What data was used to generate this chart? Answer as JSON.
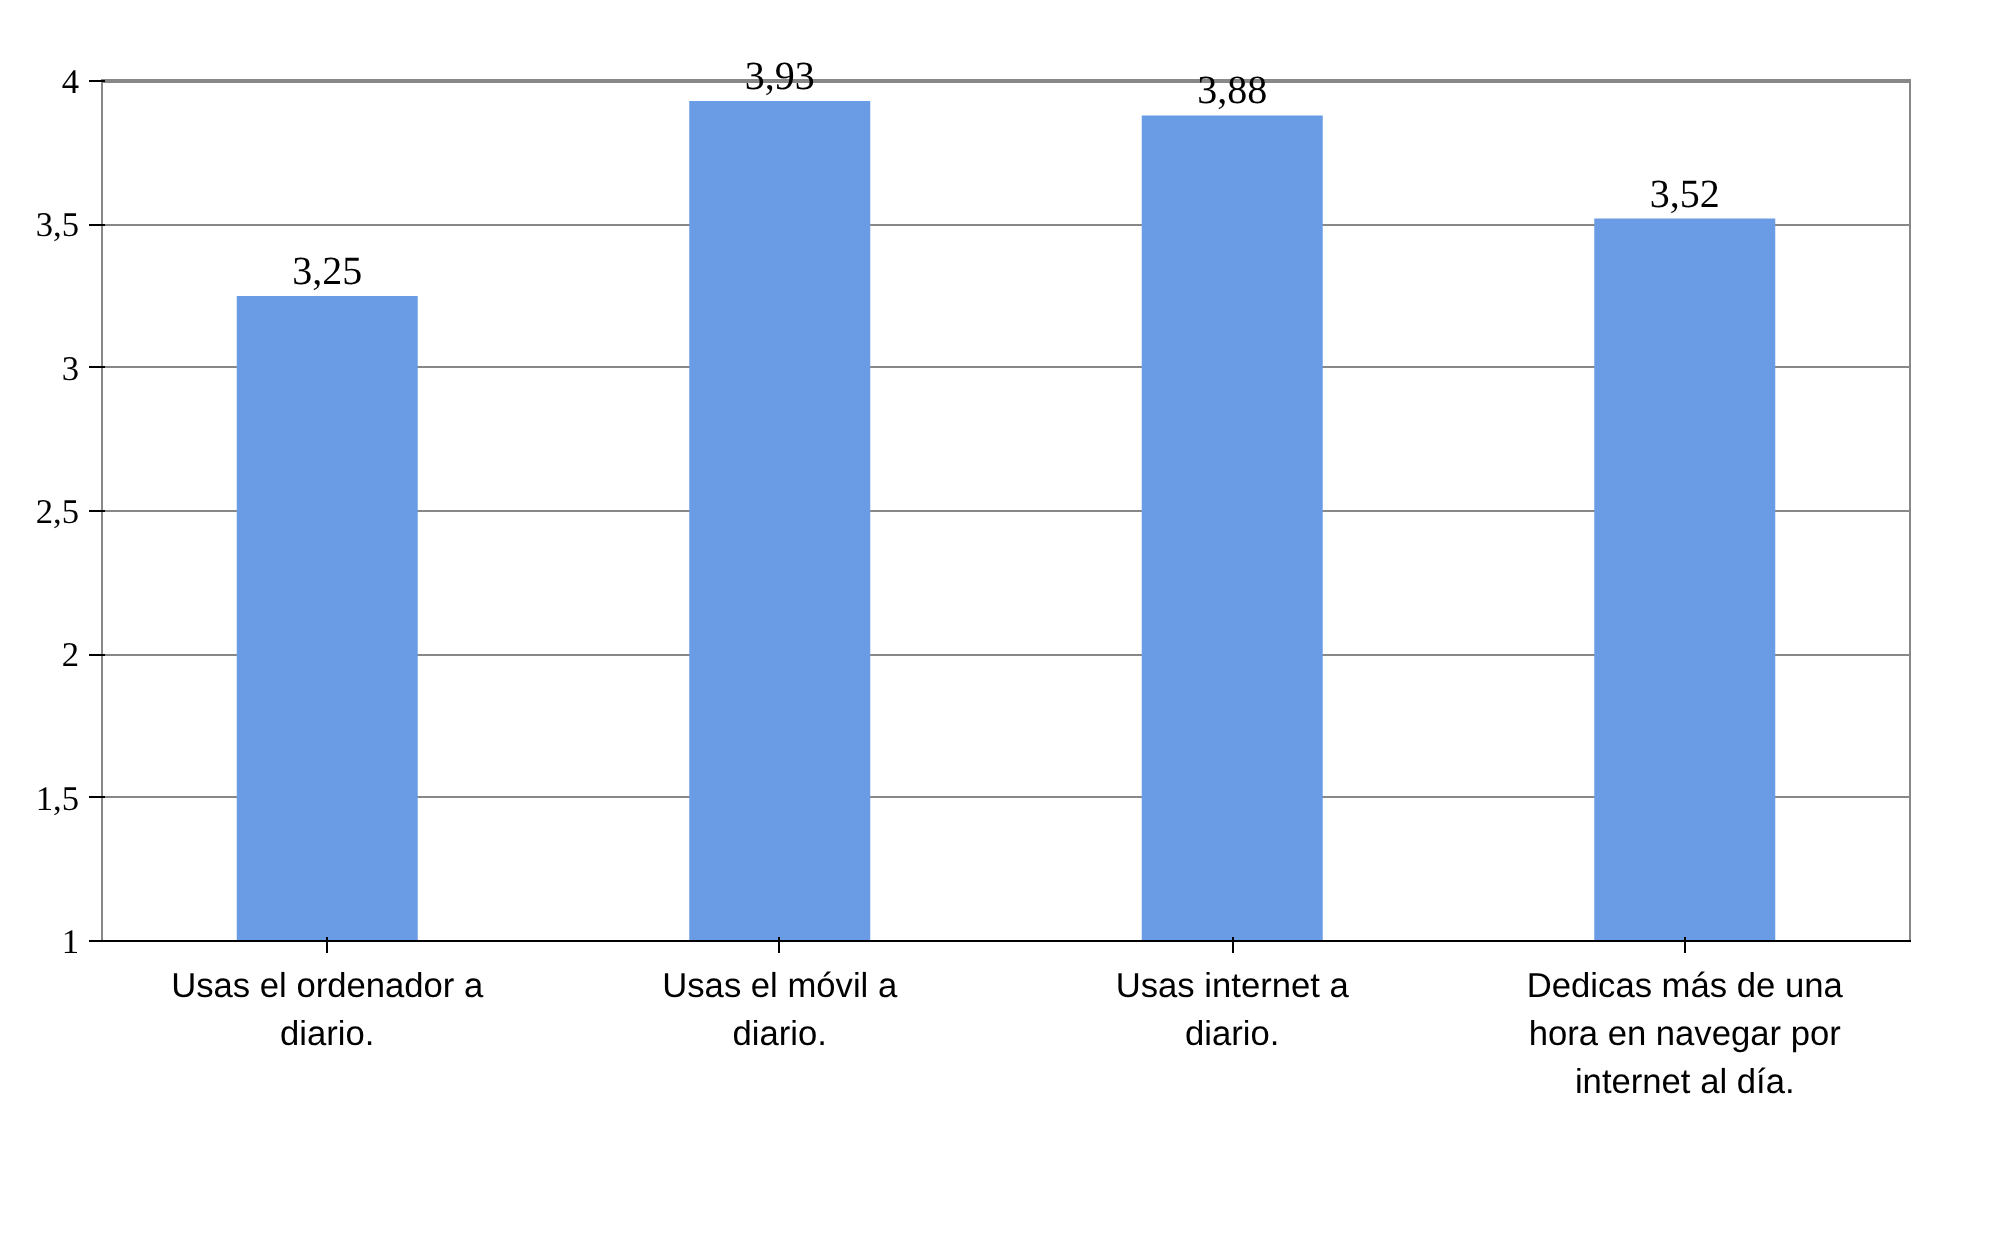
{
  "chart_data": {
    "type": "bar",
    "categories": [
      "Usas el ordenador a diario.",
      "Usas el móvil a diario.",
      "Usas internet a diario.",
      "Dedicas más de una hora en navegar por internet al día."
    ],
    "values": [
      3.25,
      3.93,
      3.88,
      3.52
    ],
    "value_labels": [
      "3,25",
      "3,93",
      "3,88",
      "3,52"
    ],
    "color": "#6a9ce6",
    "ylim": [
      1,
      4
    ],
    "yticks": [
      1,
      {
        "value": 1.5,
        "label": "1,5"
      },
      2,
      {
        "value": 2.5,
        "label": "2,5"
      },
      3,
      {
        "value": 3.5,
        "label": "3,5"
      },
      4
    ],
    "grid": "y"
  }
}
